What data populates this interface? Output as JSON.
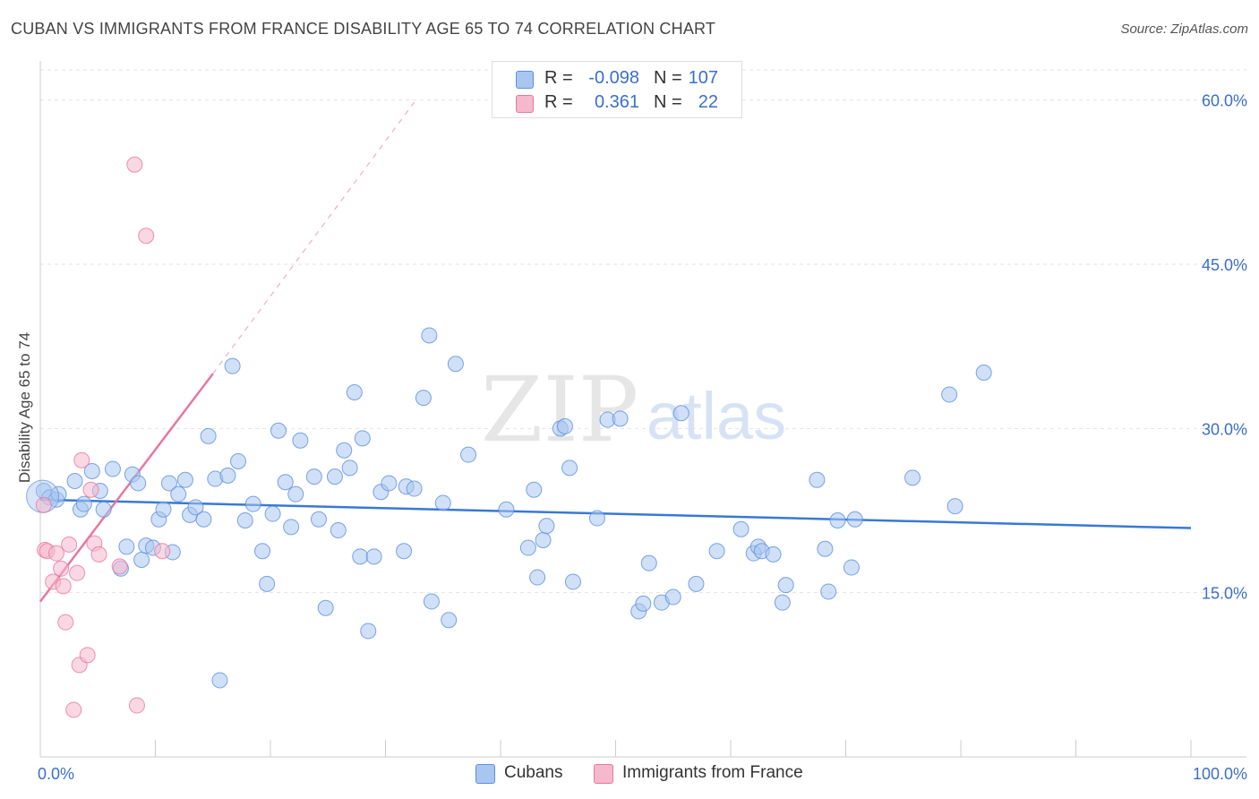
{
  "header": {
    "title": "CUBAN VS IMMIGRANTS FROM FRANCE DISABILITY AGE 65 TO 74 CORRELATION CHART",
    "source": "Source: ZipAtlas.com"
  },
  "watermark": {
    "zip": "ZIP",
    "atlas": "atlas"
  },
  "legend": {
    "rows": [
      {
        "r_label": "R =",
        "r_value": "-0.098",
        "n_label": "N =",
        "n_value": "107",
        "color": "#a9c6f0"
      },
      {
        "r_label": "R =",
        "r_value": "0.361",
        "n_label": "N =",
        "n_value": "22",
        "color": "#f5b8cc"
      }
    ]
  },
  "bottom_legend": [
    {
      "label": "Cubans",
      "color": "#a9c6f0"
    },
    {
      "label": "Immigrants from France",
      "color": "#f5b8cc"
    }
  ],
  "chart_data": {
    "type": "scatter",
    "title": "CUBAN VS IMMIGRANTS FROM FRANCE DISABILITY AGE 65 TO 74 CORRELATION CHART",
    "xlabel": "",
    "ylabel": "Disability Age 65 to 74",
    "xlim": [
      0,
      100
    ],
    "ylim": [
      0,
      63
    ],
    "x_tick_labels": [
      {
        "value": 0,
        "label": "0.0%"
      },
      {
        "value": 100,
        "label": "100.0%"
      }
    ],
    "y_tick_labels": [
      {
        "value": 15,
        "label": "15.0%"
      },
      {
        "value": 30,
        "label": "30.0%"
      },
      {
        "value": 45,
        "label": "45.0%"
      },
      {
        "value": 60,
        "label": "60.0%"
      }
    ],
    "grid": true,
    "colors": {
      "cubans": "#5b8fe0",
      "cubans_fill": "#a9c6f0",
      "france": "#e8779e",
      "france_fill": "#f5b8cc",
      "tick_text": "#3b6fc9"
    },
    "series": [
      {
        "name": "Cubans",
        "trend": {
          "x": [
            0,
            100
          ],
          "y": [
            23.5,
            20.9
          ]
        },
        "points": [
          [
            0.3,
            24.3
          ],
          [
            0.8,
            23.7
          ],
          [
            1.4,
            23.5
          ],
          [
            1.6,
            24.0
          ],
          [
            3.0,
            25.2
          ],
          [
            3.5,
            22.6
          ],
          [
            3.8,
            23.1
          ],
          [
            4.5,
            26.1
          ],
          [
            5.2,
            24.3
          ],
          [
            5.5,
            22.6
          ],
          [
            6.3,
            26.3
          ],
          [
            7.0,
            17.2
          ],
          [
            7.5,
            19.2
          ],
          [
            8.0,
            25.8
          ],
          [
            8.5,
            25.0
          ],
          [
            8.8,
            18.0
          ],
          [
            9.2,
            19.3
          ],
          [
            9.8,
            19.1
          ],
          [
            10.3,
            21.7
          ],
          [
            10.7,
            22.6
          ],
          [
            11.2,
            25.0
          ],
          [
            11.5,
            18.7
          ],
          [
            12.0,
            24.0
          ],
          [
            12.6,
            25.3
          ],
          [
            13.0,
            22.1
          ],
          [
            13.5,
            22.8
          ],
          [
            14.2,
            21.7
          ],
          [
            14.6,
            29.3
          ],
          [
            15.2,
            25.4
          ],
          [
            15.6,
            7.0
          ],
          [
            16.3,
            25.7
          ],
          [
            16.7,
            35.7
          ],
          [
            17.2,
            27.0
          ],
          [
            17.8,
            21.6
          ],
          [
            18.5,
            23.1
          ],
          [
            19.3,
            18.8
          ],
          [
            19.7,
            15.8
          ],
          [
            20.2,
            22.2
          ],
          [
            20.7,
            29.8
          ],
          [
            21.3,
            25.1
          ],
          [
            21.8,
            21.0
          ],
          [
            22.2,
            24.0
          ],
          [
            22.6,
            28.9
          ],
          [
            23.8,
            25.6
          ],
          [
            24.2,
            21.7
          ],
          [
            24.8,
            13.6
          ],
          [
            25.6,
            25.6
          ],
          [
            25.9,
            20.7
          ],
          [
            26.4,
            28.0
          ],
          [
            26.9,
            26.4
          ],
          [
            27.3,
            33.3
          ],
          [
            27.8,
            18.3
          ],
          [
            28.0,
            29.1
          ],
          [
            28.5,
            11.5
          ],
          [
            29.0,
            18.3
          ],
          [
            29.6,
            24.2
          ],
          [
            30.3,
            25.0
          ],
          [
            31.6,
            18.8
          ],
          [
            31.8,
            24.7
          ],
          [
            32.5,
            24.5
          ],
          [
            33.3,
            32.8
          ],
          [
            33.8,
            38.5
          ],
          [
            34.0,
            14.2
          ],
          [
            35.0,
            23.2
          ],
          [
            35.5,
            12.5
          ],
          [
            36.1,
            35.9
          ],
          [
            37.2,
            27.6
          ],
          [
            40.5,
            22.6
          ],
          [
            42.4,
            19.1
          ],
          [
            42.9,
            24.4
          ],
          [
            43.2,
            16.4
          ],
          [
            43.7,
            19.8
          ],
          [
            44.0,
            21.1
          ],
          [
            45.2,
            30.0
          ],
          [
            45.6,
            30.2
          ],
          [
            46.0,
            26.4
          ],
          [
            46.3,
            16.0
          ],
          [
            48.4,
            21.8
          ],
          [
            49.3,
            30.8
          ],
          [
            50.4,
            30.9
          ],
          [
            52.0,
            13.3
          ],
          [
            52.4,
            14.0
          ],
          [
            52.9,
            17.7
          ],
          [
            54.0,
            14.1
          ],
          [
            55.0,
            14.6
          ],
          [
            55.7,
            31.4
          ],
          [
            57.0,
            15.8
          ],
          [
            58.8,
            18.8
          ],
          [
            60.9,
            20.8
          ],
          [
            62.0,
            18.6
          ],
          [
            62.4,
            19.2
          ],
          [
            62.7,
            18.8
          ],
          [
            63.7,
            18.5
          ],
          [
            64.5,
            14.1
          ],
          [
            64.8,
            15.7
          ],
          [
            67.5,
            25.3
          ],
          [
            68.2,
            19.0
          ],
          [
            68.5,
            15.1
          ],
          [
            69.3,
            21.6
          ],
          [
            70.5,
            17.3
          ],
          [
            70.8,
            21.7
          ],
          [
            75.8,
            25.5
          ],
          [
            79.0,
            33.1
          ],
          [
            79.5,
            22.9
          ],
          [
            82.0,
            35.1
          ]
        ]
      },
      {
        "name": "Immigrants from France",
        "trend": {
          "x": [
            0,
            15
          ],
          "y": [
            14.2,
            35.0
          ]
        },
        "trend_dashed": {
          "x": [
            15,
            32.5
          ],
          "y": [
            35.0,
            59.8
          ]
        },
        "points": [
          [
            0.3,
            23.0
          ],
          [
            0.4,
            18.9
          ],
          [
            0.6,
            18.8
          ],
          [
            1.1,
            16.0
          ],
          [
            1.4,
            18.6
          ],
          [
            1.8,
            17.2
          ],
          [
            2.0,
            15.6
          ],
          [
            2.2,
            12.3
          ],
          [
            2.5,
            19.4
          ],
          [
            2.9,
            4.3
          ],
          [
            3.2,
            16.8
          ],
          [
            3.4,
            8.4
          ],
          [
            3.6,
            27.1
          ],
          [
            4.1,
            9.3
          ],
          [
            4.4,
            24.4
          ],
          [
            4.7,
            19.5
          ],
          [
            5.1,
            18.5
          ],
          [
            6.9,
            17.4
          ],
          [
            8.2,
            54.1
          ],
          [
            8.4,
            4.7
          ],
          [
            9.2,
            47.6
          ],
          [
            10.6,
            18.8
          ]
        ]
      }
    ]
  }
}
